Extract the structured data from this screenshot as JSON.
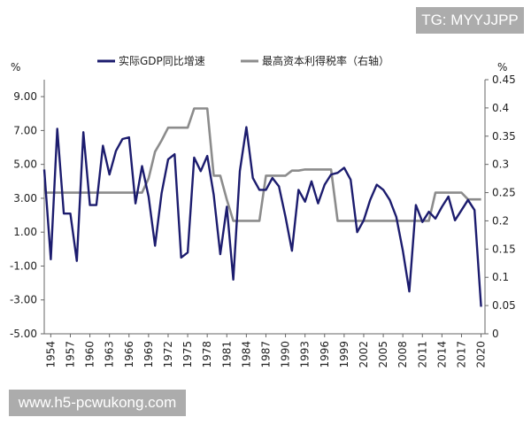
{
  "watermarks": {
    "top": "TG: MYYJJPP",
    "bottom": "www.h5-pcwukong.com"
  },
  "chart_data": {
    "type": "line",
    "title": "",
    "left_unit": "%",
    "right_unit": "%",
    "ylim_left": [
      -5,
      10
    ],
    "ylim_right": [
      0,
      0.45
    ],
    "yticks_left": [
      "9.00",
      "7.00",
      "5.00",
      "3.00",
      "1.00",
      "-1.00",
      "-3.00",
      "-5.00"
    ],
    "yticks_right": [
      "0.45",
      "0.4",
      "0.35",
      "0.3",
      "0.25",
      "0.2",
      "0.15",
      "0.1",
      "0.05",
      "0"
    ],
    "xticks": [
      "1954",
      "1957",
      "1960",
      "1963",
      "1966",
      "1969",
      "1972",
      "1975",
      "1978",
      "1981",
      "1984",
      "1987",
      "1990",
      "1993",
      "1996",
      "1999",
      "2002",
      "2005",
      "2008",
      "2011",
      "2014",
      "2017",
      "2020"
    ],
    "legend": [
      "实际GDP同比增速",
      "最高资本利得税率（右轴）"
    ],
    "colors": {
      "gdp": "#1c1c6e",
      "tax": "#8c8c8c",
      "axis": "#666666"
    },
    "series": [
      {
        "name": "实际GDP同比增速",
        "axis": "left",
        "x": [
          1953,
          1954,
          1955,
          1956,
          1957,
          1958,
          1959,
          1960,
          1961,
          1962,
          1963,
          1964,
          1965,
          1966,
          1967,
          1968,
          1969,
          1970,
          1971,
          1972,
          1973,
          1974,
          1975,
          1976,
          1977,
          1978,
          1979,
          1980,
          1981,
          1982,
          1983,
          1984,
          1985,
          1986,
          1987,
          1988,
          1989,
          1990,
          1991,
          1992,
          1993,
          1994,
          1995,
          1996,
          1997,
          1998,
          1999,
          2000,
          2001,
          2002,
          2003,
          2004,
          2005,
          2006,
          2007,
          2008,
          2009,
          2010,
          2011,
          2012,
          2013,
          2014,
          2015,
          2016,
          2017,
          2018,
          2019,
          2020
        ],
        "values": [
          4.7,
          -0.6,
          7.1,
          2.1,
          2.1,
          -0.7,
          6.9,
          2.6,
          2.6,
          6.1,
          4.4,
          5.8,
          6.5,
          6.6,
          2.7,
          4.9,
          3.1,
          0.2,
          3.3,
          5.3,
          5.6,
          -0.5,
          -0.2,
          5.4,
          4.6,
          5.5,
          3.2,
          -0.3,
          2.5,
          -1.8,
          4.6,
          7.2,
          4.2,
          3.5,
          3.5,
          4.2,
          3.7,
          1.9,
          -0.1,
          3.5,
          2.8,
          4.0,
          2.7,
          3.8,
          4.4,
          4.5,
          4.8,
          4.1,
          1.0,
          1.7,
          2.9,
          3.8,
          3.5,
          2.9,
          1.9,
          -0.1,
          -2.5,
          2.6,
          1.6,
          2.2,
          1.8,
          2.5,
          3.1,
          1.7,
          2.3,
          2.9,
          2.3,
          -3.4
        ]
      },
      {
        "name": "最高资本利得税率（右轴）",
        "axis": "right",
        "x": [
          1953,
          1954,
          1955,
          1956,
          1957,
          1958,
          1959,
          1960,
          1961,
          1962,
          1963,
          1964,
          1965,
          1966,
          1967,
          1968,
          1969,
          1970,
          1971,
          1972,
          1973,
          1974,
          1975,
          1976,
          1977,
          1978,
          1979,
          1980,
          1981,
          1982,
          1983,
          1984,
          1985,
          1986,
          1987,
          1988,
          1989,
          1990,
          1991,
          1992,
          1993,
          1994,
          1995,
          1996,
          1997,
          1998,
          1999,
          2000,
          2001,
          2002,
          2003,
          2004,
          2005,
          2006,
          2007,
          2008,
          2009,
          2010,
          2011,
          2012,
          2013,
          2014,
          2015,
          2016,
          2017,
          2018,
          2019,
          2020
        ],
        "values": [
          0.25,
          0.25,
          0.25,
          0.25,
          0.25,
          0.25,
          0.25,
          0.25,
          0.25,
          0.25,
          0.25,
          0.25,
          0.25,
          0.25,
          0.25,
          0.25,
          0.275,
          0.3225,
          0.3425,
          0.365,
          0.365,
          0.365,
          0.365,
          0.399,
          0.399,
          0.399,
          0.28,
          0.28,
          0.2375,
          0.2,
          0.2,
          0.2,
          0.2,
          0.2,
          0.28,
          0.28,
          0.28,
          0.28,
          0.289,
          0.289,
          0.291,
          0.291,
          0.291,
          0.291,
          0.291,
          0.2,
          0.2,
          0.2,
          0.2,
          0.2,
          0.2,
          0.2,
          0.2,
          0.2,
          0.2,
          0.2,
          0.2,
          0.2,
          0.2,
          0.2,
          0.25,
          0.25,
          0.25,
          0.25,
          0.25,
          0.238,
          0.238,
          0.238
        ]
      }
    ]
  }
}
